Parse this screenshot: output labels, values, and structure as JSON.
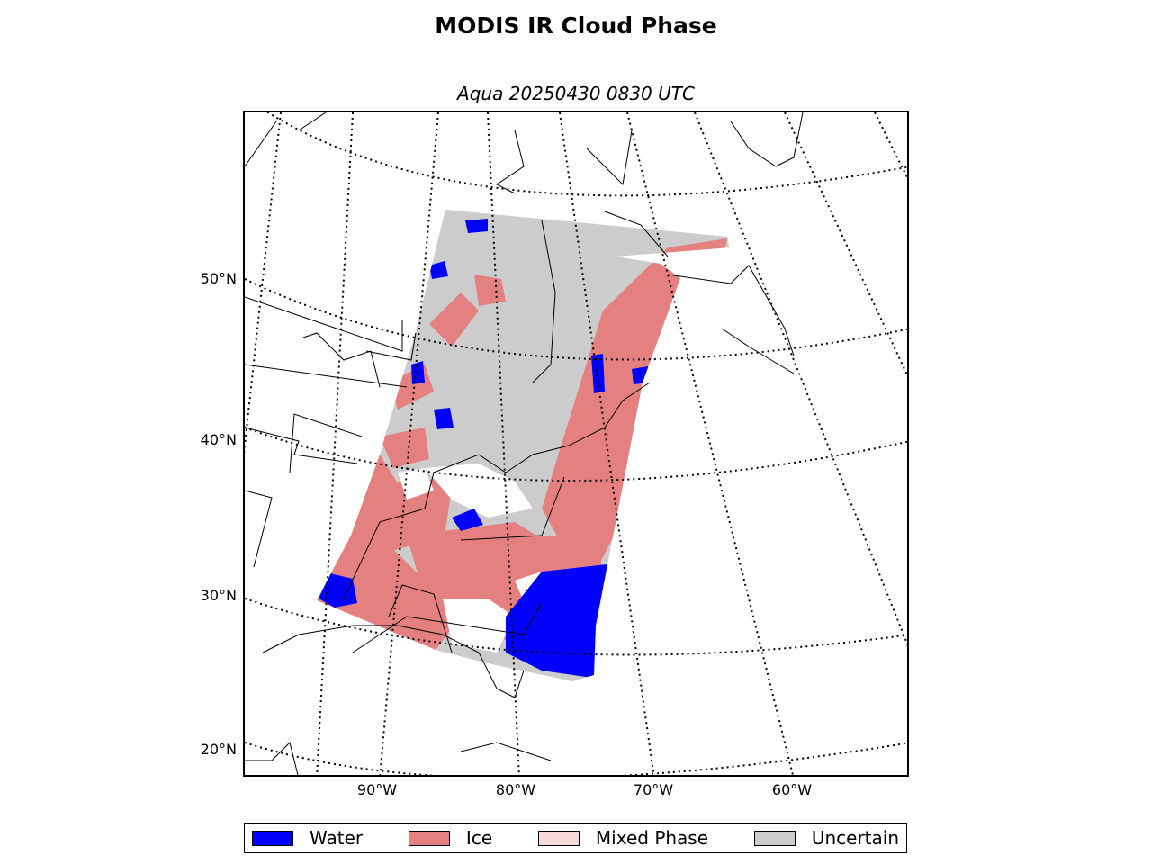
{
  "title": "MODIS IR Cloud Phase",
  "subtitle": "Aqua 20250430 0830 UTC",
  "lat_labels": [
    "50°N",
    "40°N",
    "30°N",
    "20°N"
  ],
  "lon_labels": [
    "90°W",
    "80°W",
    "70°W",
    "60°W"
  ],
  "legend": [
    {
      "label": "Water",
      "color": "#0000ff"
    },
    {
      "label": "Ice",
      "color": "#e58080"
    },
    {
      "label": "Mixed Phase",
      "color": "#f7d9d9"
    },
    {
      "label": "Uncertain",
      "color": "#cccccc"
    }
  ],
  "colors": {
    "water": "#0000ff",
    "ice": "#e58080",
    "mixed": "#f7d9d9",
    "uncertain": "#cccccc",
    "coast": "#000000"
  }
}
